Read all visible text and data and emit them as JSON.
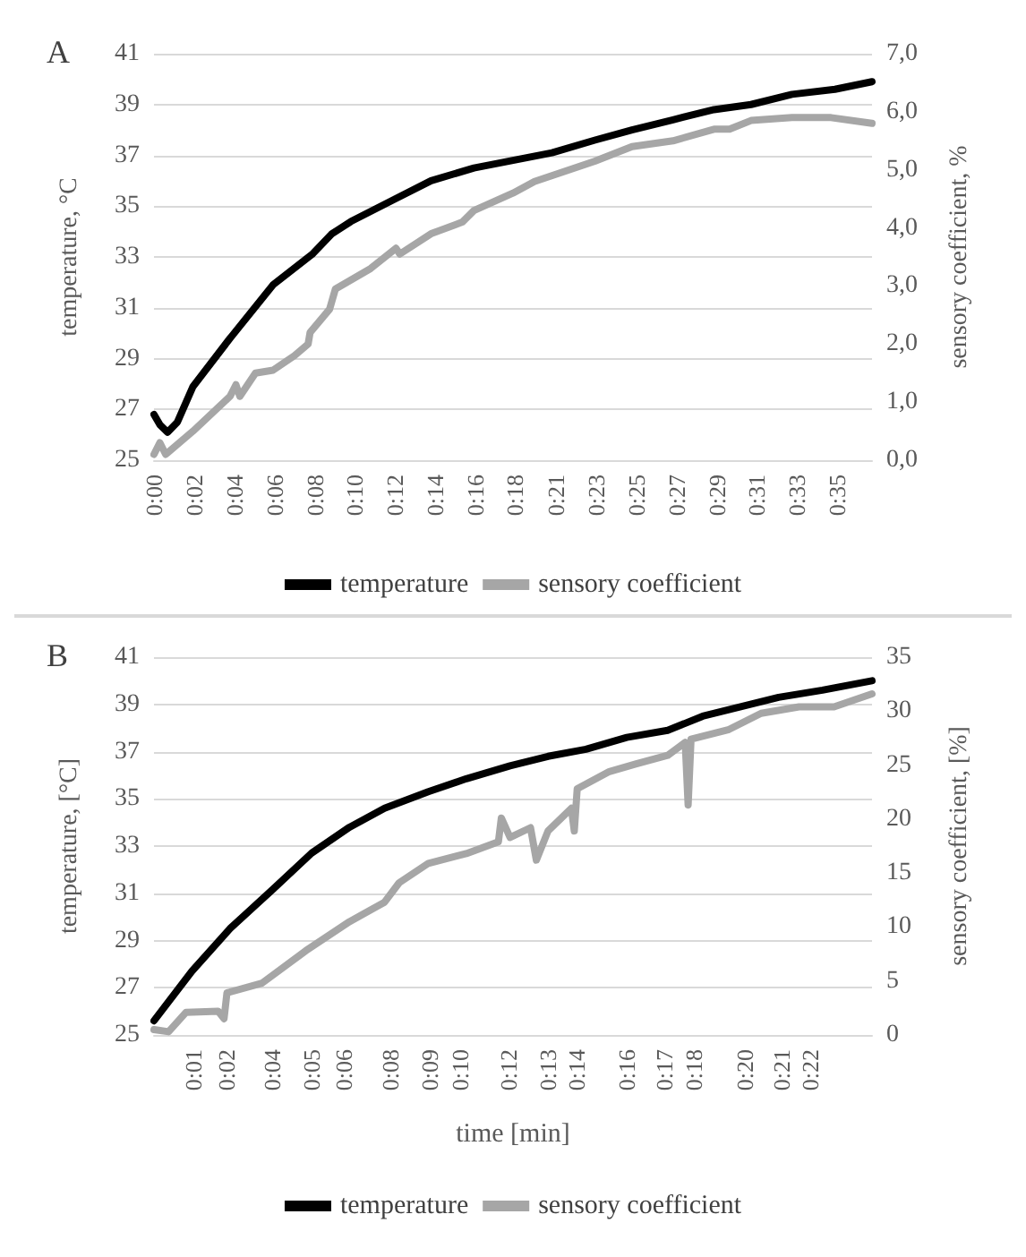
{
  "chart_data": [
    {
      "type": "line",
      "annotations": [
        "A"
      ],
      "ylabel": "temperature, °C",
      "y2label": "sensory coefficient, %",
      "grid": "y",
      "legend": "bottom",
      "marker": "none",
      "line_style": "solid",
      "xlim": [
        0,
        36.8
      ],
      "xticks": [
        {
          "value": 0,
          "label": "0:00"
        },
        {
          "value": 2.06,
          "label": "0:02"
        },
        {
          "value": 4.12,
          "label": "0:04"
        },
        {
          "value": 6.18,
          "label": "0:06"
        },
        {
          "value": 8.24,
          "label": "0:08"
        },
        {
          "value": 10.3,
          "label": "0:10"
        },
        {
          "value": 12.36,
          "label": "0:12"
        },
        {
          "value": 14.42,
          "label": "0:14"
        },
        {
          "value": 16.48,
          "label": "0:16"
        },
        {
          "value": 18.49,
          "label": "0:18"
        },
        {
          "value": 20.6,
          "label": "0:21"
        },
        {
          "value": 22.66,
          "label": "0:23"
        },
        {
          "value": 24.72,
          "label": "0:25"
        },
        {
          "value": 26.78,
          "label": "0:27"
        },
        {
          "value": 28.84,
          "label": "0:29"
        },
        {
          "value": 30.9,
          "label": "0:31"
        },
        {
          "value": 32.96,
          "label": "0:33"
        },
        {
          "value": 35.02,
          "label": "0:35"
        }
      ],
      "ylim": [
        25,
        41
      ],
      "yticks": [
        25,
        27,
        29,
        31,
        33,
        35,
        37,
        39,
        41
      ],
      "y2lim": [
        0,
        7
      ],
      "y2ticks": [
        {
          "value": 0,
          "label": "0,0"
        },
        {
          "value": 1,
          "label": "1,0"
        },
        {
          "value": 2,
          "label": "2,0"
        },
        {
          "value": 3,
          "label": "3,0"
        },
        {
          "value": 4,
          "label": "4,0"
        },
        {
          "value": 5,
          "label": "5,0"
        },
        {
          "value": 6,
          "label": "6,0"
        },
        {
          "value": 7,
          "label": "7,0"
        }
      ],
      "series": [
        {
          "name": "temperature",
          "color": "#000000",
          "x": [
            0,
            0.3,
            0.7,
            1.2,
            2.0,
            3.9,
            6.1,
            8.1,
            9.1,
            10.1,
            12.4,
            14.2,
            16.4,
            18.4,
            20.4,
            22.6,
            24.5,
            26.6,
            28.7,
            30.6,
            32.7,
            34.9,
            36.8
          ],
          "values": [
            26.8,
            26.4,
            26.1,
            26.5,
            27.9,
            29.8,
            31.9,
            33.1,
            33.9,
            34.4,
            35.3,
            36.0,
            36.5,
            36.8,
            37.1,
            37.6,
            38.0,
            38.4,
            38.8,
            39.0,
            39.4,
            39.6,
            39.9
          ]
        },
        {
          "name": "sensory coefficient",
          "color": "#a6a6a6",
          "axis": "y2",
          "x": [
            0,
            0.3,
            0.6,
            2.0,
            3.9,
            4.2,
            4.4,
            5.2,
            6.1,
            7.2,
            7.9,
            8.0,
            9.0,
            9.3,
            11.1,
            12.4,
            12.6,
            14.2,
            15.8,
            16.4,
            18.4,
            19.5,
            22.6,
            24.5,
            26.6,
            28.7,
            29.5,
            30.6,
            32.7,
            34.7,
            36.8
          ],
          "values": [
            0.1,
            0.3,
            0.1,
            0.5,
            1.1,
            1.3,
            1.1,
            1.5,
            1.55,
            1.8,
            2.0,
            2.2,
            2.6,
            2.95,
            3.3,
            3.65,
            3.55,
            3.9,
            4.1,
            4.3,
            4.6,
            4.8,
            5.15,
            5.4,
            5.5,
            5.7,
            5.7,
            5.85,
            5.9,
            5.9,
            5.8
          ]
        }
      ]
    },
    {
      "type": "line",
      "annotations": [
        "B"
      ],
      "xlabel": "time [min]",
      "ylabel": "temperature, [°C]",
      "y2label": "sensory coefficient, [%]",
      "grid": "y",
      "legend": "bottom",
      "marker": "none",
      "line_style": "solid",
      "xlim": [
        0,
        24.6
      ],
      "xticks": [
        {
          "value": 1.35,
          "label": "0:01"
        },
        {
          "value": 2.49,
          "label": "0:02"
        },
        {
          "value": 4.05,
          "label": "0:04"
        },
        {
          "value": 5.4,
          "label": "0:05"
        },
        {
          "value": 6.49,
          "label": "0:06"
        },
        {
          "value": 8.1,
          "label": "0:08"
        },
        {
          "value": 9.45,
          "label": "0:09"
        },
        {
          "value": 10.49,
          "label": "0:10"
        },
        {
          "value": 12.15,
          "label": "0:12"
        },
        {
          "value": 13.49,
          "label": "0:13"
        },
        {
          "value": 14.49,
          "label": "0:14"
        },
        {
          "value": 16.2,
          "label": "0:16"
        },
        {
          "value": 17.49,
          "label": "0:17"
        },
        {
          "value": 18.49,
          "label": "0:18"
        },
        {
          "value": 20.25,
          "label": "0:20"
        },
        {
          "value": 21.49,
          "label": "0:21"
        },
        {
          "value": 22.49,
          "label": "0:22"
        }
      ],
      "ylim": [
        25,
        41
      ],
      "yticks": [
        25,
        27,
        29,
        31,
        33,
        35,
        37,
        39,
        41
      ],
      "y2lim": [
        0,
        35
      ],
      "y2ticks": [
        0,
        5,
        10,
        15,
        20,
        25,
        30,
        35
      ],
      "series": [
        {
          "name": "temperature",
          "color": "#000000",
          "x": [
            0,
            1.3,
            2.6,
            4.1,
            5.4,
            6.7,
            7.9,
            9.4,
            10.7,
            12.2,
            13.5,
            14.8,
            16.2,
            17.6,
            18.8,
            20.1,
            21.4,
            22.9,
            24.6
          ],
          "values": [
            25.6,
            27.7,
            29.5,
            31.2,
            32.7,
            33.8,
            34.6,
            35.3,
            35.85,
            36.4,
            36.8,
            37.1,
            37.6,
            37.9,
            38.5,
            38.9,
            39.3,
            39.6,
            40.0
          ]
        },
        {
          "name": "sensory coefficient",
          "color": "#a6a6a6",
          "axis": "y2",
          "x": [
            0,
            0.5,
            1.1,
            2.2,
            2.4,
            2.5,
            3.7,
            5.2,
            6.7,
            7.9,
            8.4,
            9.4,
            10.7,
            11.8,
            11.9,
            12.2,
            12.9,
            13.1,
            13.5,
            14.3,
            14.4,
            14.5,
            15.6,
            16.5,
            17.6,
            18.2,
            18.3,
            18.4,
            19.7,
            20.8,
            22.1,
            23.3,
            24.6
          ],
          "values": [
            0.5,
            0.3,
            2.1,
            2.2,
            1.5,
            3.9,
            4.8,
            7.8,
            10.5,
            12.3,
            14.1,
            15.9,
            16.8,
            17.9,
            20.1,
            18.3,
            19.2,
            16.2,
            18.9,
            21,
            18.9,
            22.8,
            24.4,
            25.1,
            25.9,
            27.1,
            21.3,
            27.4,
            28.3,
            29.8,
            30.4,
            30.4,
            31.6
          ]
        }
      ]
    }
  ]
}
